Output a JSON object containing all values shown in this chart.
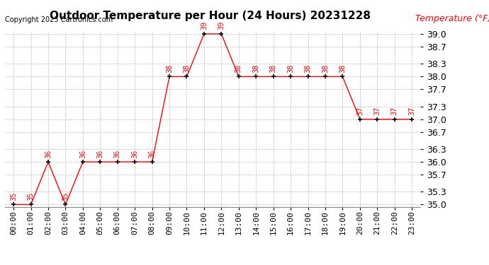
{
  "title": "Outdoor Temperature per Hour (24 Hours) 20231228",
  "copyright_text": "Copyright 2023 Cartronics.com",
  "legend_label": "Temperature (°F)",
  "hours": [
    0,
    1,
    2,
    3,
    4,
    5,
    6,
    7,
    8,
    9,
    10,
    11,
    12,
    13,
    14,
    15,
    16,
    17,
    18,
    19,
    20,
    21,
    22,
    23
  ],
  "hour_labels": [
    "00:00",
    "01:00",
    "02:00",
    "03:00",
    "04:00",
    "05:00",
    "06:00",
    "07:00",
    "08:00",
    "09:00",
    "10:00",
    "11:00",
    "12:00",
    "13:00",
    "14:00",
    "15:00",
    "16:00",
    "17:00",
    "18:00",
    "19:00",
    "20:00",
    "21:00",
    "22:00",
    "23:00"
  ],
  "temperatures": [
    35,
    35,
    36,
    35,
    36,
    36,
    36,
    36,
    36,
    38,
    38,
    39,
    39,
    38,
    38,
    38,
    38,
    38,
    38,
    38,
    37,
    37,
    37,
    37
  ],
  "ylim_min": 34.95,
  "ylim_max": 39.05,
  "yticks": [
    35.0,
    35.3,
    35.7,
    36.0,
    36.3,
    36.7,
    37.0,
    37.3,
    37.7,
    38.0,
    38.3,
    38.7,
    39.0
  ],
  "line_color": "red",
  "marker_color": "black",
  "grid_color": "#bbbbbb",
  "background_color": "white",
  "title_fontsize": 11,
  "copyright_fontsize": 7,
  "tick_label_fontsize": 8,
  "annotation_fontsize": 7,
  "legend_color": "red",
  "legend_fontsize": 9,
  "ytick_fontsize": 9
}
